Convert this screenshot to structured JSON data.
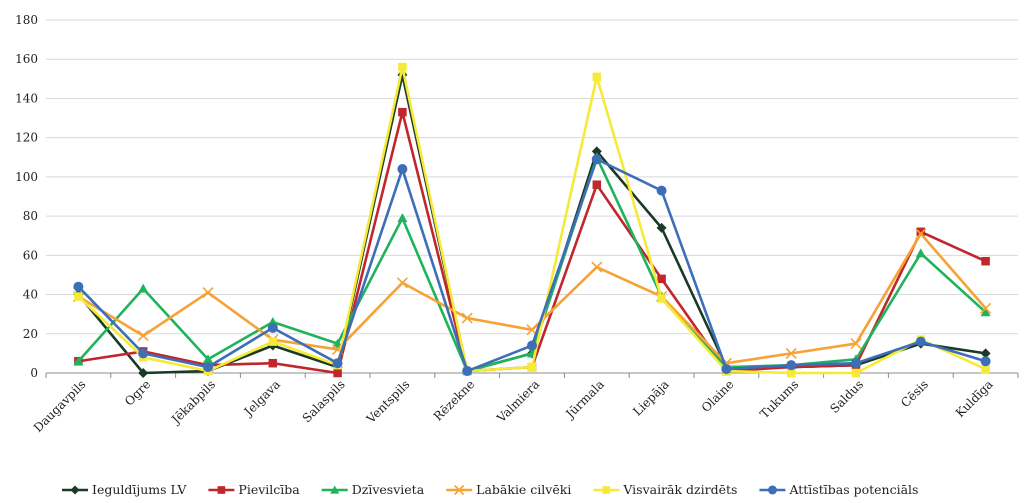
{
  "chart_data": {
    "type": "line",
    "title": "",
    "xlabel": "",
    "ylabel": "",
    "ylim": [
      0,
      180
    ],
    "yticks": [
      0,
      20,
      40,
      60,
      80,
      100,
      120,
      140,
      160,
      180
    ],
    "grid": "horizontal",
    "legend_position": "bottom",
    "categories": [
      "Daugavpils",
      "Ogre",
      "Jēkabpils",
      "Jelgava",
      "Salaspils",
      "Ventspils",
      "Rēzekne",
      "Valmiera",
      "Jūrmala",
      "Liepāja",
      "Olaine",
      "Tukums",
      "Saldus",
      "Cēsis",
      "Kuldīga"
    ],
    "series": [
      {
        "name": "Ieguldījums LV",
        "color": "#1b3a26",
        "marker": "diamond",
        "values": [
          40,
          0,
          1,
          14,
          3,
          152,
          1,
          10,
          113,
          74,
          3,
          3,
          4,
          15,
          10
        ]
      },
      {
        "name": "Pievilcība",
        "color": "#c0272d",
        "marker": "square",
        "values": [
          6,
          11,
          4,
          5,
          0,
          133,
          1,
          3,
          96,
          48,
          1,
          3,
          4,
          72,
          57
        ]
      },
      {
        "name": "Dzīvesvieta",
        "color": "#1fb35b",
        "marker": "triangle",
        "values": [
          6,
          43,
          7,
          26,
          15,
          79,
          1,
          10,
          110,
          39,
          3,
          4,
          7,
          61,
          31
        ]
      },
      {
        "name": "Labākie cilvēki",
        "color": "#f7a234",
        "marker": "x",
        "values": [
          39,
          19,
          41,
          17,
          12,
          46,
          28,
          22,
          54,
          39,
          5,
          10,
          15,
          71,
          33
        ]
      },
      {
        "name": "Visvairāk dzirdēts",
        "color": "#f5ea37",
        "marker": "square",
        "values": [
          39,
          8,
          1,
          16,
          4,
          156,
          1,
          3,
          151,
          38,
          1,
          0,
          0,
          17,
          2
        ]
      },
      {
        "name": "Attīstības potenciāls",
        "color": "#3d6eb8",
        "marker": "circle",
        "values": [
          44,
          10,
          3,
          23,
          5,
          104,
          1,
          14,
          109,
          93,
          2,
          4,
          5,
          16,
          6
        ]
      }
    ]
  }
}
